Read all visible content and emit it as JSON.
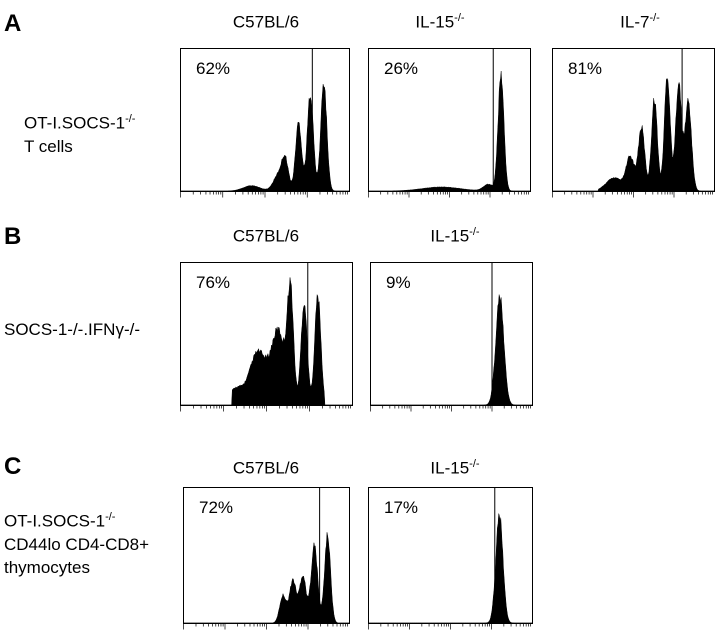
{
  "panels": [
    {
      "letter": "A",
      "row_label_lines": [
        "OT-I.SOCS-1",
        "T cells"
      ],
      "row_label_sup": "-/-",
      "columns": [
        {
          "title_base": "C57BL/6",
          "title_sup": "",
          "percent": "62%"
        },
        {
          "title_base": "IL-15",
          "title_sup": "-/-",
          "percent": "26%"
        },
        {
          "title_base": "IL-7",
          "title_sup": "-/-",
          "percent": "81%"
        }
      ]
    },
    {
      "letter": "B",
      "row_label_lines": [
        "SOCS-1-/-.IFNγ-/-"
      ],
      "row_label_sup": "",
      "columns": [
        {
          "title_base": "C57BL/6",
          "title_sup": "",
          "percent": "76%"
        },
        {
          "title_base": "IL-15",
          "title_sup": "-/-",
          "percent": "9%"
        }
      ]
    },
    {
      "letter": "C",
      "row_label_lines": [
        "OT-I.SOCS-1",
        "CD44lo CD4-CD8+",
        "thymocytes"
      ],
      "row_label_sup": "-/-",
      "columns": [
        {
          "title_base": "C57BL/6",
          "title_sup": "",
          "percent": "72%"
        },
        {
          "title_base": "IL-15",
          "title_sup": "-/-",
          "percent": "17%"
        }
      ]
    }
  ],
  "chart_data": [
    {
      "type": "area",
      "panel": "A",
      "title": "C57BL/6",
      "gate_percent": 62,
      "gate_position": 0.78,
      "peaks": [
        {
          "x": 0.42,
          "h": 0.04,
          "w": 0.05
        },
        {
          "x": 0.58,
          "h": 0.12,
          "w": 0.03
        },
        {
          "x": 0.62,
          "h": 0.22,
          "w": 0.02
        },
        {
          "x": 0.7,
          "h": 0.52,
          "w": 0.018
        },
        {
          "x": 0.77,
          "h": 0.74,
          "w": 0.018
        },
        {
          "x": 0.85,
          "h": 0.82,
          "w": 0.018
        }
      ],
      "start": 0.28,
      "end": 0.92
    },
    {
      "type": "area",
      "panel": "A",
      "title": "IL-15-/-",
      "gate_percent": 26,
      "gate_position": 0.77,
      "peaks": [
        {
          "x": 0.45,
          "h": 0.03,
          "w": 0.12
        },
        {
          "x": 0.74,
          "h": 0.05,
          "w": 0.03
        },
        {
          "x": 0.82,
          "h": 0.88,
          "w": 0.018
        }
      ],
      "start": 0.15,
      "end": 0.9
    },
    {
      "type": "area",
      "panel": "A",
      "title": "IL-7-/-",
      "gate_percent": 81,
      "gate_position": 0.8,
      "peaks": [
        {
          "x": 0.38,
          "h": 0.1,
          "w": 0.05
        },
        {
          "x": 0.48,
          "h": 0.25,
          "w": 0.025
        },
        {
          "x": 0.55,
          "h": 0.48,
          "w": 0.02
        },
        {
          "x": 0.63,
          "h": 0.7,
          "w": 0.018
        },
        {
          "x": 0.71,
          "h": 0.88,
          "w": 0.018
        },
        {
          "x": 0.78,
          "h": 0.82,
          "w": 0.018
        },
        {
          "x": 0.84,
          "h": 0.68,
          "w": 0.02
        }
      ],
      "start": 0.28,
      "end": 0.92
    },
    {
      "type": "area",
      "panel": "B",
      "title": "C57BL/6",
      "gate_percent": 76,
      "gate_position": 0.74,
      "peaks": [
        {
          "x": 0.32,
          "h": 0.12,
          "w": 0.04
        },
        {
          "x": 0.45,
          "h": 0.4,
          "w": 0.05
        },
        {
          "x": 0.57,
          "h": 0.55,
          "w": 0.04
        },
        {
          "x": 0.64,
          "h": 0.82,
          "w": 0.018
        },
        {
          "x": 0.72,
          "h": 0.78,
          "w": 0.018
        },
        {
          "x": 0.8,
          "h": 0.83,
          "w": 0.018
        }
      ],
      "start": 0.3,
      "end": 0.84
    },
    {
      "type": "area",
      "panel": "B",
      "title": "IL-15-/-",
      "gate_percent": 9,
      "gate_position": 0.75,
      "peaks": [
        {
          "x": 0.8,
          "h": 0.82,
          "w": 0.025
        }
      ],
      "start": 0.6,
      "end": 0.92
    },
    {
      "type": "area",
      "panel": "C",
      "title": "C57BL/6",
      "gate_percent": 72,
      "gate_position": 0.82,
      "peaks": [
        {
          "x": 0.6,
          "h": 0.22,
          "w": 0.02
        },
        {
          "x": 0.66,
          "h": 0.34,
          "w": 0.02
        },
        {
          "x": 0.72,
          "h": 0.38,
          "w": 0.02
        },
        {
          "x": 0.79,
          "h": 0.62,
          "w": 0.02
        },
        {
          "x": 0.87,
          "h": 0.7,
          "w": 0.018
        }
      ],
      "start": 0.54,
      "end": 0.93
    },
    {
      "type": "area",
      "panel": "C",
      "title": "IL-15-/-",
      "gate_percent": 17,
      "gate_position": 0.77,
      "peaks": [
        {
          "x": 0.8,
          "h": 0.86,
          "w": 0.022
        }
      ],
      "start": 0.62,
      "end": 0.92
    }
  ]
}
